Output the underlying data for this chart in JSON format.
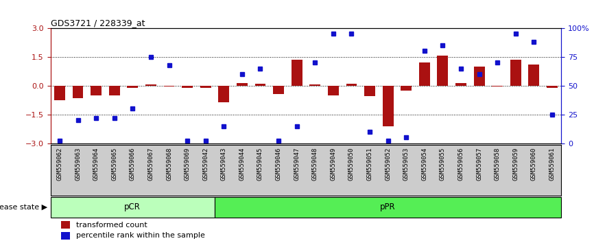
{
  "title": "GDS3721 / 228339_at",
  "samples": [
    "GSM559062",
    "GSM559063",
    "GSM559064",
    "GSM559065",
    "GSM559066",
    "GSM559067",
    "GSM559068",
    "GSM559069",
    "GSM559042",
    "GSM559043",
    "GSM559044",
    "GSM559045",
    "GSM559046",
    "GSM559047",
    "GSM559048",
    "GSM559049",
    "GSM559050",
    "GSM559051",
    "GSM559052",
    "GSM559053",
    "GSM559054",
    "GSM559055",
    "GSM559056",
    "GSM559057",
    "GSM559058",
    "GSM559059",
    "GSM559060",
    "GSM559061"
  ],
  "transformed_count": [
    -0.75,
    -0.65,
    -0.5,
    -0.5,
    -0.1,
    0.05,
    -0.05,
    -0.1,
    -0.1,
    -0.85,
    0.15,
    0.1,
    -0.45,
    1.35,
    0.08,
    -0.5,
    0.1,
    -0.55,
    -2.1,
    -0.25,
    1.2,
    1.55,
    0.15,
    1.0,
    -0.05,
    1.35,
    1.1,
    -0.1
  ],
  "percentile_rank": [
    2,
    20,
    22,
    22,
    30,
    75,
    68,
    2,
    2,
    15,
    60,
    65,
    2,
    15,
    70,
    95,
    95,
    10,
    2,
    5,
    80,
    85,
    65,
    60,
    70,
    95,
    88,
    25
  ],
  "group_labels": [
    "pCR",
    "pPR"
  ],
  "group_splits": [
    9
  ],
  "n_samples": 28,
  "group_colors": [
    "#bbffbb",
    "#55ee55"
  ],
  "ylim": [
    -3,
    3
  ],
  "yticks_left": [
    -3,
    -1.5,
    0,
    1.5,
    3
  ],
  "yticks_right": [
    0,
    25,
    50,
    75,
    100
  ],
  "hlines": [
    -1.5,
    0,
    1.5
  ],
  "bar_color": "#aa1111",
  "dot_color": "#1111cc",
  "tick_area_color": "#cccccc",
  "background_color": "#ffffff",
  "legend_items": [
    "transformed count",
    "percentile rank within the sample"
  ],
  "disease_state_label": "disease state"
}
